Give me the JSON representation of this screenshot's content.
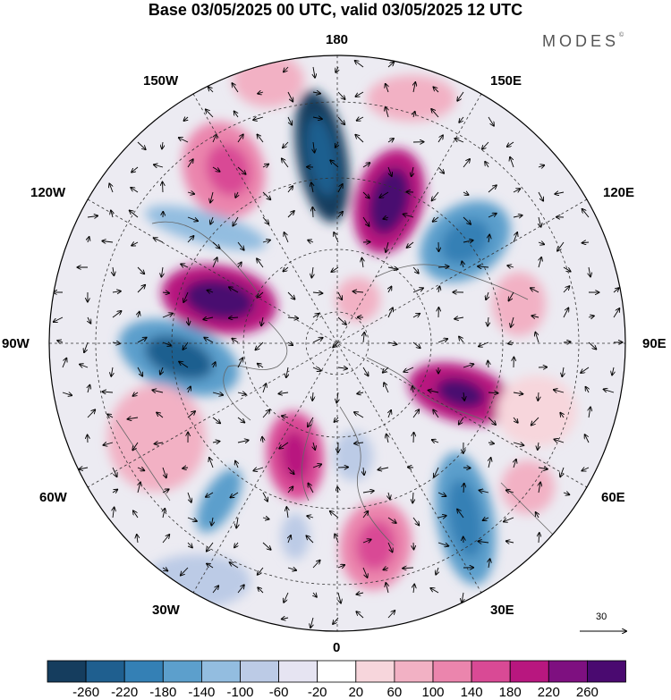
{
  "title": "Base 03/05/2025 00 UTC, valid 03/05/2025 12 UTC",
  "brand": {
    "text": "MODES",
    "mark": "©"
  },
  "longitudes": {
    "top": "180",
    "bottom": "0",
    "left": "90W",
    "right": "90E",
    "upper_left_1": "150W",
    "upper_left_2": "120W",
    "upper_right_1": "150E",
    "upper_right_2": "120E",
    "lower_left_1": "60W",
    "lower_left_2": "30W",
    "lower_right_1": "60E",
    "lower_right_2": "30E"
  },
  "reference_vector": {
    "value": "30"
  },
  "colorbar": {
    "labels": [
      "-260",
      "-220",
      "-180",
      "-140",
      "-100",
      "-60",
      "-20",
      "20",
      "60",
      "100",
      "140",
      "180",
      "220",
      "260"
    ],
    "colors": [
      "#153d5e",
      "#1f5f8f",
      "#3480b5",
      "#5c9fcc",
      "#93bde0",
      "#bccbe6",
      "#e6e4f2",
      "#ffffff",
      "#f7d6dc",
      "#f2b1c4",
      "#eb85ad",
      "#d94a95",
      "#b8177f",
      "#7e1080",
      "#4a0a70"
    ]
  },
  "map_colors": {
    "land_background": "#e9e9ee",
    "coast": "#666666",
    "grid": "#333333"
  }
}
